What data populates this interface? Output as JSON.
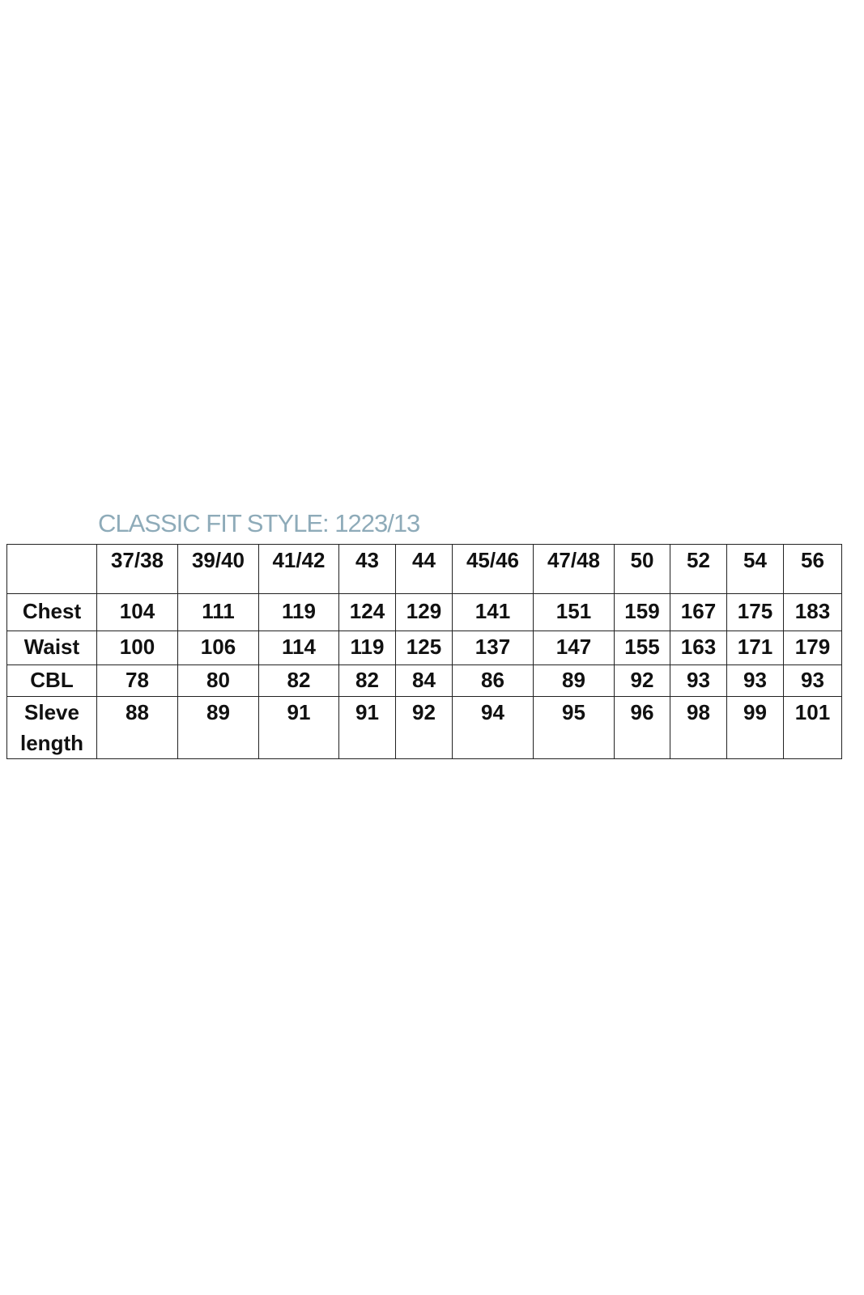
{
  "title": "CLASSIC FIT STYLE: 1223/13",
  "table": {
    "header": [
      "",
      "37/38",
      "39/40",
      "41/42",
      "43",
      "44",
      "45/46",
      "47/48",
      "50",
      "52",
      "54",
      "56"
    ],
    "rows": [
      {
        "label": "Chest",
        "values": [
          "104",
          "111",
          "119",
          "124",
          "129",
          "141",
          "151",
          "159",
          "167",
          "175",
          "183"
        ]
      },
      {
        "label": "Waist",
        "values": [
          "100",
          "106",
          "114",
          "119",
          "125",
          "137",
          "147",
          "155",
          "163",
          "171",
          "179"
        ]
      },
      {
        "label": "CBL",
        "values": [
          "78",
          "80",
          "82",
          "82",
          "84",
          "86",
          "89",
          "92",
          "93",
          "93",
          "93"
        ]
      },
      {
        "label": "Sleve length",
        "values": [
          "88",
          "89",
          "91",
          "91",
          "92",
          "94",
          "95",
          "96",
          "98",
          "99",
          "101"
        ]
      }
    ]
  },
  "colors": {
    "title": "#8eabb9",
    "text": "#111111",
    "border": "#222222"
  }
}
